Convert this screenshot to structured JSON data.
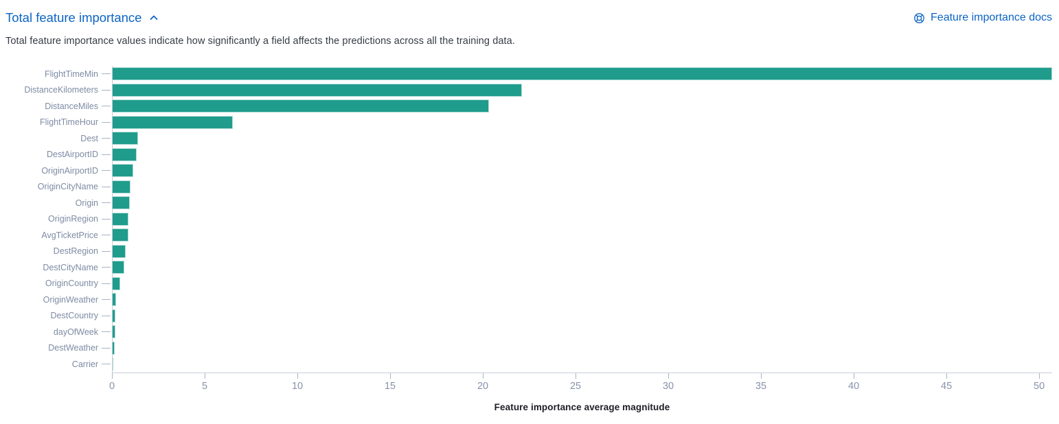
{
  "header": {
    "title": "Total feature importance",
    "collapse_icon": "chevron-up",
    "docs_link_label": "Feature importance docs",
    "docs_link_icon": "lifebuoy-help-icon",
    "description": "Total feature importance values indicate how significantly a field affects the predictions across all the training data.",
    "link_color": "#0b64c5"
  },
  "chart_data": {
    "type": "bar",
    "orientation": "horizontal",
    "title": "",
    "xlabel": "Feature importance average magnitude",
    "ylabel": "",
    "categories": [
      "FlightTimeMin",
      "DistanceKilometers",
      "DistanceMiles",
      "FlightTimeHour",
      "Dest",
      "DestAirportID",
      "OriginAirportID",
      "OriginCityName",
      "Origin",
      "OriginRegion",
      "AvgTicketPrice",
      "DestRegion",
      "DestCityName",
      "OriginCountry",
      "OriginWeather",
      "DestCountry",
      "dayOfWeek",
      "DestWeather",
      "Carrier"
    ],
    "values": [
      50.7,
      22.1,
      20.3,
      6.5,
      1.37,
      1.3,
      1.11,
      0.96,
      0.93,
      0.87,
      0.84,
      0.72,
      0.62,
      0.42,
      0.2,
      0.16,
      0.16,
      0.12,
      0.05
    ],
    "xticks": [
      0,
      5,
      10,
      15,
      20,
      25,
      30,
      35,
      40,
      45,
      50
    ],
    "xtick_labels": [
      "0",
      "5",
      "10",
      "15",
      "20",
      "25",
      "30",
      "35",
      "40",
      "45",
      "50"
    ],
    "xlim": [
      0,
      50.7
    ],
    "bar_color": "#1f9c8c",
    "grid": false,
    "legend": false
  }
}
